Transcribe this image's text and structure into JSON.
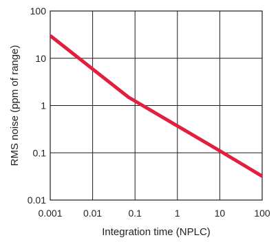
{
  "chart_data": {
    "type": "line",
    "title": "",
    "xlabel": "Integration time (NPLC)",
    "ylabel": "RMS noise (ppm of range)",
    "x_scale": "log",
    "y_scale": "log",
    "xlim": [
      0.001,
      100
    ],
    "ylim": [
      0.01,
      100
    ],
    "x_ticks": [
      0.001,
      0.01,
      0.1,
      1,
      10,
      100
    ],
    "x_tick_labels": [
      "0.001",
      "0.01",
      "0.1",
      "1",
      "10",
      "100"
    ],
    "y_ticks": [
      0.01,
      0.1,
      1,
      10,
      100
    ],
    "y_tick_labels": [
      "0.01",
      "0.1",
      "1",
      "10",
      "100"
    ],
    "grid": true,
    "series": [
      {
        "color": "#e0203c",
        "x": [
          0.001,
          0.07,
          10,
          100
        ],
        "y": [
          30,
          1.5,
          0.11,
          0.032
        ]
      }
    ]
  }
}
